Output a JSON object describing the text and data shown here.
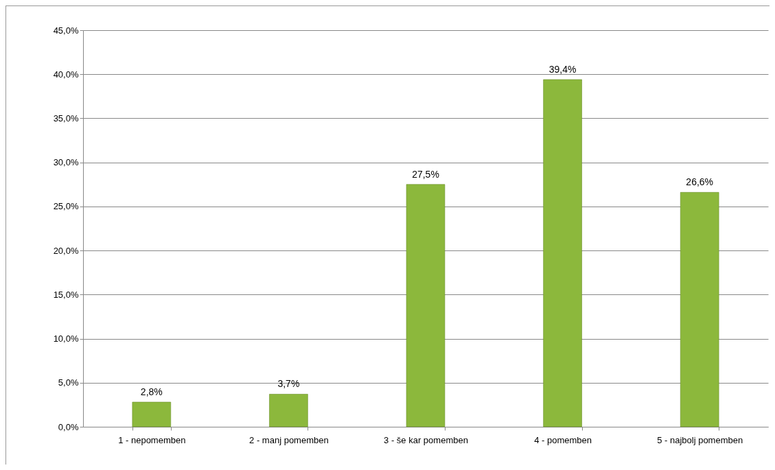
{
  "chart_data": {
    "type": "bar",
    "categories": [
      "1 - nepomemben",
      "2 - manj pomemben",
      "3 - še kar pomemben",
      "4 - pomemben",
      "5 - najbolj pomemben"
    ],
    "values": [
      2.8,
      3.7,
      27.5,
      39.4,
      26.6
    ],
    "value_labels": [
      "2,8%",
      "3,7%",
      "27,5%",
      "39,4%",
      "26,6%"
    ],
    "color": "#8cb83c",
    "ylim": [
      0,
      45
    ],
    "yticks": [
      {
        "value": 0,
        "label": "0,0%"
      },
      {
        "value": 5,
        "label": "5,0%"
      },
      {
        "value": 10,
        "label": "10,0%"
      },
      {
        "value": 15,
        "label": "15,0%"
      },
      {
        "value": 20,
        "label": "20,0%"
      },
      {
        "value": 25,
        "label": "25,0%"
      },
      {
        "value": 30,
        "label": "30,0%"
      },
      {
        "value": 35,
        "label": "35,0%"
      },
      {
        "value": 40,
        "label": "40,0%"
      },
      {
        "value": 45,
        "label": "45,0%"
      }
    ],
    "grid": "y"
  }
}
